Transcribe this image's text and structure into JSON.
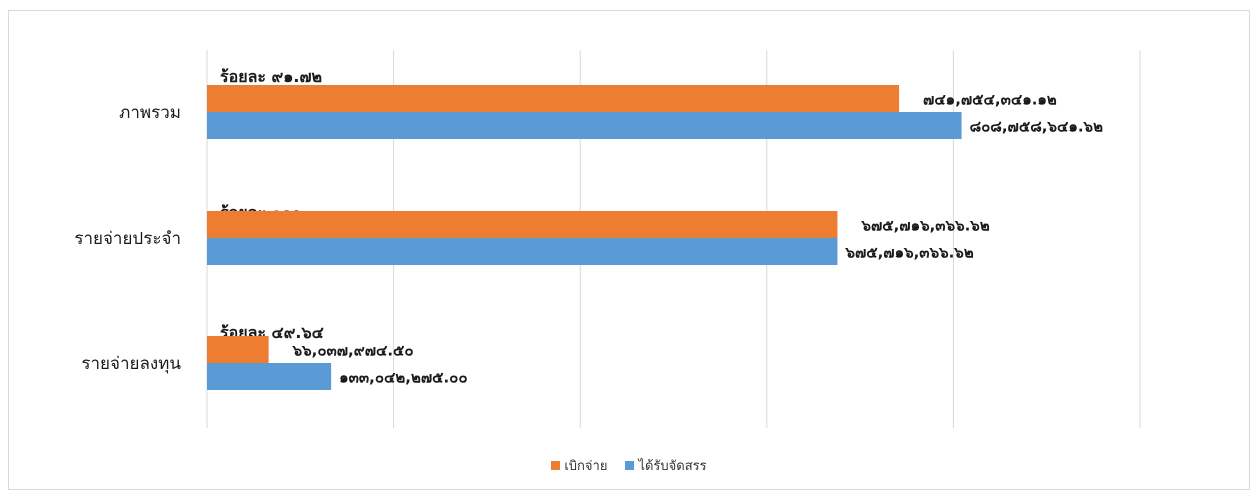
{
  "chart_data": {
    "type": "bar",
    "orientation": "horizontal",
    "categories": [
      "ภาพรวม",
      "รายจ่ายประจำ",
      "รายจ่ายลงทุน"
    ],
    "series": [
      {
        "name": "เบิกจ่าย",
        "color": "#ED7D31",
        "values": [
          741754341.12,
          675716366.62,
          66037974.5
        ],
        "labels": [
          "๗๔๑,๗๕๔,๓๔๑.๑๒",
          "๖๗๕,๗๑๖,๓๖๖.๖๒",
          "๖๖,๐๓๗,๙๗๔.๕๐"
        ]
      },
      {
        "name": "ได้รับจัดสรร",
        "color": "#5B9BD5",
        "values": [
          808758641.62,
          675716366.62,
          133042275.0
        ],
        "labels": [
          "๘๐๘,๗๕๘,๖๔๑.๖๒",
          "๖๗๕,๗๑๖,๓๖๖.๖๒",
          "๑๓๓,๐๔๒,๒๗๕.๐๐"
        ]
      }
    ],
    "percent_labels": [
      "ร้อยละ ๙๑.๗๒",
      "ร้อยละ  ๑๐๐",
      "ร้อยละ ๔๙.๖๔"
    ],
    "xlim": [
      0,
      1000000000
    ],
    "grid": true,
    "legend_position": "bottom"
  }
}
